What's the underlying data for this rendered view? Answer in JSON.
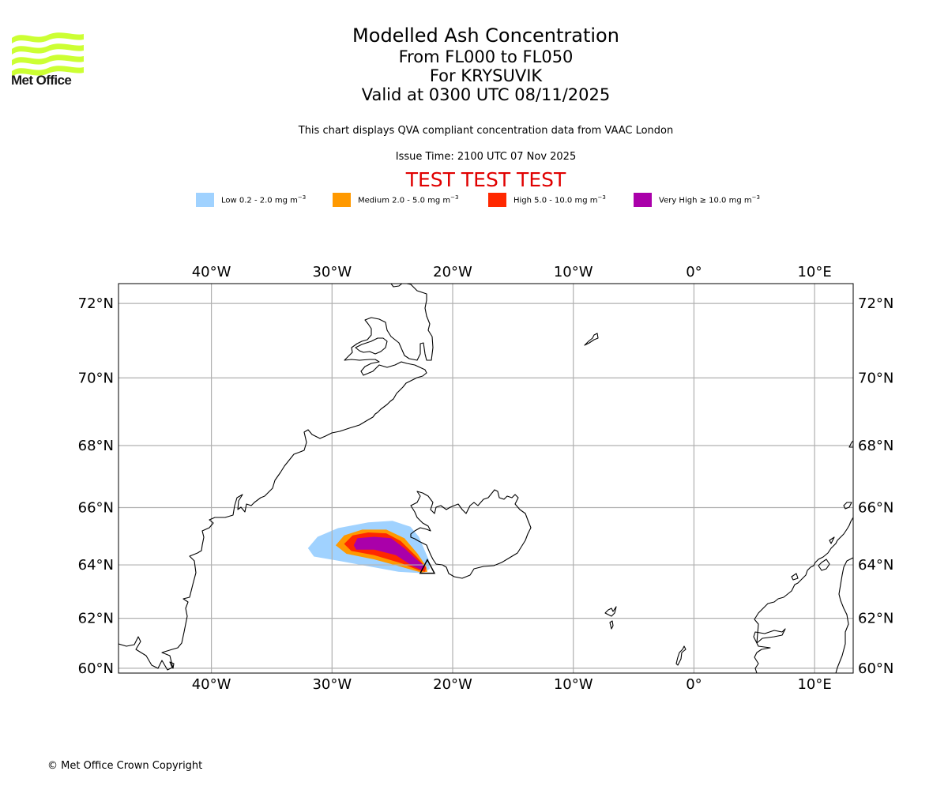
{
  "header": {
    "logo_text": "Met Office",
    "title_lines": [
      "Modelled Ash Concentration",
      "From FL000 to FL050",
      "For KRYSUVIK",
      "Valid at 0300 UTC 08/11/2025"
    ],
    "subtitle": "This chart displays QVA compliant concentration data from VAAC London",
    "issue_time": "Issue Time: 2100 UTC 07 Nov 2025",
    "test_banner": "TEST TEST TEST"
  },
  "legend": [
    {
      "label": "Low 0.2 - 2.0 mg m",
      "sup": "−3",
      "color": "#a0d2ff"
    },
    {
      "label": "Medium 2.0 - 5.0 mg m",
      "sup": "−3",
      "color": "#ff9900"
    },
    {
      "label": "High 5.0 - 10.0 mg m",
      "sup": "−3",
      "color": "#ff2800"
    },
    {
      "label": "Very High  ≥  10.0 mg m",
      "sup": "−3",
      "color": "#aa00aa"
    }
  ],
  "footer": {
    "copyright": "© Met Office Crown Copyright"
  },
  "chart_data": {
    "type": "heatmap",
    "title": "Modelled Ash Concentration",
    "subtitle": "From FL000 to FL050 / For KRYSUVIK / Valid at 0300 UTC 08/11/2025",
    "projection": "Mercator",
    "lon_range": [
      -47.7,
      13.2
    ],
    "lat_range": [
      59.8,
      72.5
    ],
    "grid": true,
    "lon_ticks": [
      {
        "value": -40,
        "label": "40°W"
      },
      {
        "value": -30,
        "label": "30°W"
      },
      {
        "value": -20,
        "label": "20°W"
      },
      {
        "value": -10,
        "label": "10°W"
      },
      {
        "value": 0,
        "label": "0°"
      },
      {
        "value": 10,
        "label": "10°E"
      }
    ],
    "lat_ticks": [
      {
        "value": 72,
        "label": "72°N"
      },
      {
        "value": 70,
        "label": "70°N"
      },
      {
        "value": 68,
        "label": "68°N"
      },
      {
        "value": 66,
        "label": "66°N"
      },
      {
        "value": 64,
        "label": "64°N"
      },
      {
        "value": 62,
        "label": "62°N"
      },
      {
        "value": 60,
        "label": "60°N"
      }
    ],
    "source": {
      "name": "KRYSUVIK",
      "lon": -22.1,
      "lat": 63.9,
      "marker": "triangle"
    },
    "ash_levels": [
      {
        "level": "Low",
        "range": "0.2 - 2.0 mg m-3",
        "color": "#a0d2ff",
        "polygon": [
          [
            -32.0,
            64.6
          ],
          [
            -31.2,
            65.0
          ],
          [
            -29.5,
            65.3
          ],
          [
            -27.0,
            65.5
          ],
          [
            -25.0,
            65.55
          ],
          [
            -23.5,
            65.35
          ],
          [
            -22.8,
            65.0
          ],
          [
            -22.4,
            64.6
          ],
          [
            -22.0,
            64.2
          ],
          [
            -21.9,
            63.85
          ],
          [
            -22.6,
            63.7
          ],
          [
            -24.5,
            63.75
          ],
          [
            -27.0,
            63.95
          ],
          [
            -29.5,
            64.15
          ],
          [
            -31.5,
            64.3
          ]
        ]
      },
      {
        "level": "Medium",
        "range": "2.0 - 5.0 mg m-3",
        "color": "#ff9900",
        "polygon": [
          [
            -29.7,
            64.7
          ],
          [
            -29.0,
            65.05
          ],
          [
            -27.5,
            65.25
          ],
          [
            -25.5,
            65.25
          ],
          [
            -24.0,
            64.95
          ],
          [
            -22.9,
            64.4
          ],
          [
            -22.2,
            63.95
          ],
          [
            -22.1,
            63.75
          ],
          [
            -22.6,
            63.72
          ],
          [
            -24.0,
            63.9
          ],
          [
            -26.5,
            64.2
          ],
          [
            -28.8,
            64.4
          ]
        ]
      },
      {
        "level": "High",
        "range": "5.0 - 10.0 mg m-3",
        "color": "#ff2800",
        "polygon": [
          [
            -29.0,
            64.75
          ],
          [
            -28.3,
            65.05
          ],
          [
            -27.0,
            65.15
          ],
          [
            -25.5,
            65.12
          ],
          [
            -24.3,
            64.85
          ],
          [
            -23.0,
            64.3
          ],
          [
            -22.2,
            63.9
          ],
          [
            -22.3,
            63.75
          ],
          [
            -22.8,
            63.8
          ],
          [
            -24.2,
            64.05
          ],
          [
            -26.5,
            64.35
          ],
          [
            -28.4,
            64.5
          ]
        ]
      },
      {
        "level": "Very High",
        "range": ">= 10.0 mg m-3",
        "color": "#aa00aa",
        "polygon": [
          [
            -28.2,
            64.7
          ],
          [
            -27.9,
            64.95
          ],
          [
            -26.5,
            65.0
          ],
          [
            -25.1,
            64.95
          ],
          [
            -24.0,
            64.6
          ],
          [
            -23.0,
            64.2
          ],
          [
            -22.3,
            63.95
          ],
          [
            -22.5,
            63.8
          ],
          [
            -23.3,
            63.95
          ],
          [
            -24.7,
            64.35
          ],
          [
            -26.5,
            64.55
          ],
          [
            -28.0,
            64.55
          ]
        ]
      }
    ]
  }
}
